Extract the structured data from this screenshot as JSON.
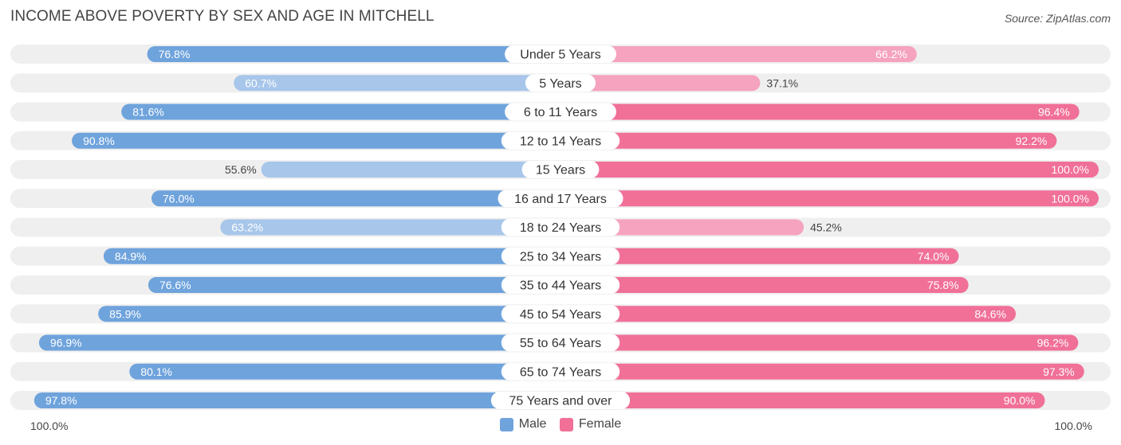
{
  "title": "INCOME ABOVE POVERTY BY SEX AND AGE IN MITCHELL",
  "source": "Source: ZipAtlas.com",
  "colors": {
    "male_strong": "#6fa3dc",
    "male_light": "#a7c6ea",
    "female_strong": "#f07098",
    "female_light": "#f5a3bf",
    "row_bg": "#efefef"
  },
  "chart_data": {
    "type": "bar",
    "orientation": "horizontal-diverging",
    "categories": [
      "Under 5 Years",
      "5 Years",
      "6 to 11 Years",
      "12 to 14 Years",
      "15 Years",
      "16 and 17 Years",
      "18 to 24 Years",
      "25 to 34 Years",
      "35 to 44 Years",
      "45 to 54 Years",
      "55 to 64 Years",
      "65 to 74 Years",
      "75 Years and over"
    ],
    "series": [
      {
        "name": "Male",
        "values": [
          76.8,
          60.7,
          81.6,
          90.8,
          55.6,
          76.0,
          63.2,
          84.9,
          76.6,
          85.9,
          96.9,
          80.1,
          97.8
        ],
        "labels": [
          "76.8%",
          "60.7%",
          "81.6%",
          "90.8%",
          "55.6%",
          "76.0%",
          "63.2%",
          "84.9%",
          "76.6%",
          "85.9%",
          "96.9%",
          "80.1%",
          "97.8%"
        ]
      },
      {
        "name": "Female",
        "values": [
          66.2,
          37.1,
          96.4,
          92.2,
          100.0,
          100.0,
          45.2,
          74.0,
          75.8,
          84.6,
          96.2,
          97.3,
          90.0
        ],
        "labels": [
          "66.2%",
          "37.1%",
          "96.4%",
          "92.2%",
          "100.0%",
          "100.0%",
          "45.2%",
          "74.0%",
          "75.8%",
          "84.6%",
          "96.2%",
          "97.3%",
          "90.0%"
        ]
      }
    ],
    "xlim": [
      0,
      100
    ],
    "axis_left_label": "100.0%",
    "axis_right_label": "100.0%",
    "legend_position": "bottom-center"
  }
}
